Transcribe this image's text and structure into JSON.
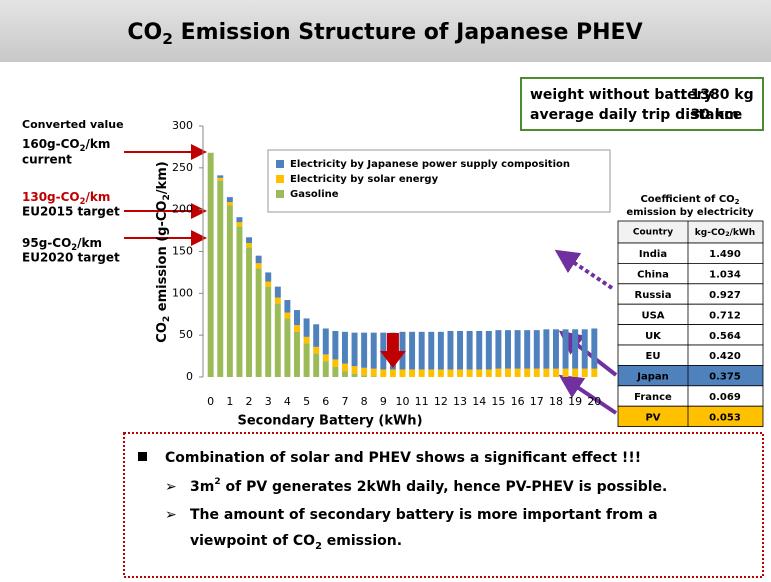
{
  "title": [
    "CO",
    "2",
    " Emission Structure of Japanese PHEV"
  ],
  "info": [
    [
      "weight without battery",
      ": 1380 kg"
    ],
    [
      "average daily trip distance",
      ": 30 km"
    ]
  ],
  "annotations": {
    "header": "Converted value",
    "items": [
      {
        "parts": [
          "160g-CO",
          "2",
          "/km"
        ],
        "note": "current"
      },
      {
        "parts": [
          "130g-CO",
          "2",
          "/km"
        ],
        "note": "EU2015 target"
      },
      {
        "parts": [
          "95g-CO",
          "2",
          "/km"
        ],
        "note": "EU2020 target"
      }
    ]
  },
  "chart_data": {
    "type": "stacked_bar",
    "xlabel": "Secondary Battery (kWh)",
    "ylabel": [
      "CO",
      "2",
      " emission (g-CO",
      "2",
      "/km)"
    ],
    "x": [
      0,
      0.5,
      1,
      1.5,
      2,
      2.5,
      3,
      3.5,
      4,
      4.5,
      5,
      5.5,
      6,
      6.5,
      7,
      7.5,
      8,
      8.5,
      9,
      9.5,
      10,
      10.5,
      11,
      11.5,
      12,
      12.5,
      13,
      13.5,
      14,
      14.5,
      15,
      15.5,
      16,
      16.5,
      17,
      17.5,
      18,
      18.5,
      19,
      19.5,
      20
    ],
    "xlim": [
      -0.4,
      20.4
    ],
    "xticks": [
      0,
      1,
      2,
      3,
      4,
      5,
      6,
      7,
      8,
      9,
      10,
      11,
      12,
      13,
      14,
      15,
      16,
      17,
      18,
      19,
      20
    ],
    "ylim": [
      0,
      300
    ],
    "yticks": [
      0,
      50,
      100,
      150,
      200,
      250,
      300
    ],
    "series": [
      {
        "name": "Electricity by Japanese power supply composition",
        "color": "#4f81bd",
        "values": [
          0,
          3,
          6,
          6,
          7,
          9,
          11,
          13,
          15,
          18,
          22,
          27,
          31,
          34,
          38,
          40,
          42,
          43,
          44,
          44,
          45,
          45,
          45,
          45,
          45,
          46,
          46,
          46,
          46,
          46,
          46,
          46,
          46,
          46,
          46,
          47,
          47,
          47,
          47,
          47,
          48
        ]
      },
      {
        "name": "Electricity by solar energy",
        "color": "#ffc000",
        "values": [
          0,
          3,
          4,
          5,
          5,
          6,
          6,
          7,
          7,
          8,
          8,
          8,
          8,
          9,
          9,
          9,
          9,
          9,
          9,
          9,
          9,
          9,
          9,
          9,
          9,
          9,
          9,
          9,
          9,
          9,
          10,
          10,
          10,
          10,
          10,
          10,
          10,
          10,
          10,
          10,
          10
        ]
      },
      {
        "name": "Gasoline",
        "color": "#9bbb59",
        "values": [
          268,
          235,
          205,
          180,
          155,
          130,
          108,
          88,
          70,
          54,
          40,
          28,
          19,
          12,
          7,
          4,
          2,
          1,
          0,
          0,
          0,
          0,
          0,
          0,
          0,
          0,
          0,
          0,
          0,
          0,
          0,
          0,
          0,
          0,
          0,
          0,
          0,
          0,
          0,
          0,
          0
        ]
      }
    ]
  },
  "table": {
    "title": [
      [
        "Coefficient of CO",
        "2"
      ],
      [
        "emission by electricity"
      ]
    ],
    "header": [
      [
        "Country"
      ],
      [
        "kg-CO",
        "2",
        "/kWh"
      ]
    ],
    "rows": [
      [
        "India",
        "1.490"
      ],
      [
        "China",
        "1.034"
      ],
      [
        "Russia",
        "0.927"
      ],
      [
        "USA",
        "0.712"
      ],
      [
        "UK",
        "0.564"
      ],
      [
        "EU",
        "0.420"
      ],
      [
        "Japan",
        "0.375"
      ],
      [
        "France",
        "0.069"
      ],
      [
        "PV",
        "0.053"
      ]
    ]
  },
  "notes": {
    "main": "Combination of solar and PHEV shows a significant effect !!!",
    "items": [
      [
        [
          "3m",
          "2",
          " of PV generates 2kWh daily, hence PV-PHEV is possible."
        ]
      ],
      [
        [
          "The amount of secondary battery is more important from a"
        ],
        [
          "viewpoint of CO",
          "2",
          " emission."
        ]
      ]
    ]
  }
}
